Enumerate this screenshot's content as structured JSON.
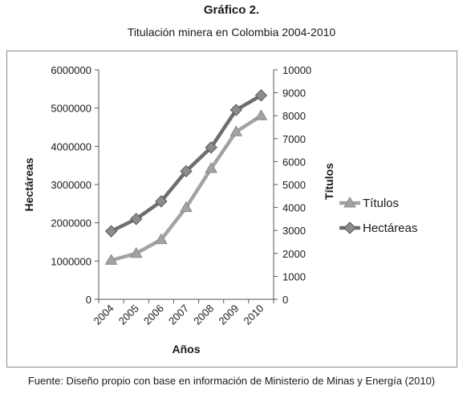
{
  "figure": {
    "number": "Gráfico 2.",
    "title": "Titulación minera en Colombia 2004-2010",
    "source": "Fuente: Diseño propio con base en información de Ministerio de Minas y Energía (2010)"
  },
  "chart_data": {
    "type": "line",
    "categories": [
      "2004",
      "2005",
      "2006",
      "2007",
      "2008",
      "2009",
      "2010"
    ],
    "xlabel": "Años",
    "ylabel_left": "Hectáreas",
    "ylabel_right": "Títulos",
    "ylim_left": [
      0,
      6000000
    ],
    "ylim_right": [
      0,
      10000
    ],
    "yticks_left": [
      "0",
      "1000000",
      "2000000",
      "3000000",
      "4000000",
      "5000000",
      "6000000"
    ],
    "yticks_right": [
      "0",
      "1000",
      "2000",
      "3000",
      "4000",
      "5000",
      "6000",
      "7000",
      "8000",
      "9000",
      "10000"
    ],
    "grid": false,
    "legend_position": "right",
    "series": [
      {
        "name": "Títulos",
        "axis": "right",
        "marker": "triangle",
        "color": "#a3a3a3",
        "values": [
          1700,
          2000,
          2600,
          4000,
          5700,
          7300,
          8000
        ]
      },
      {
        "name": "Hectáreas",
        "axis": "left",
        "marker": "diamond",
        "color": "#6e6e6e",
        "values": [
          1780000,
          2100000,
          2560000,
          3350000,
          3970000,
          4950000,
          5330000
        ]
      }
    ]
  }
}
